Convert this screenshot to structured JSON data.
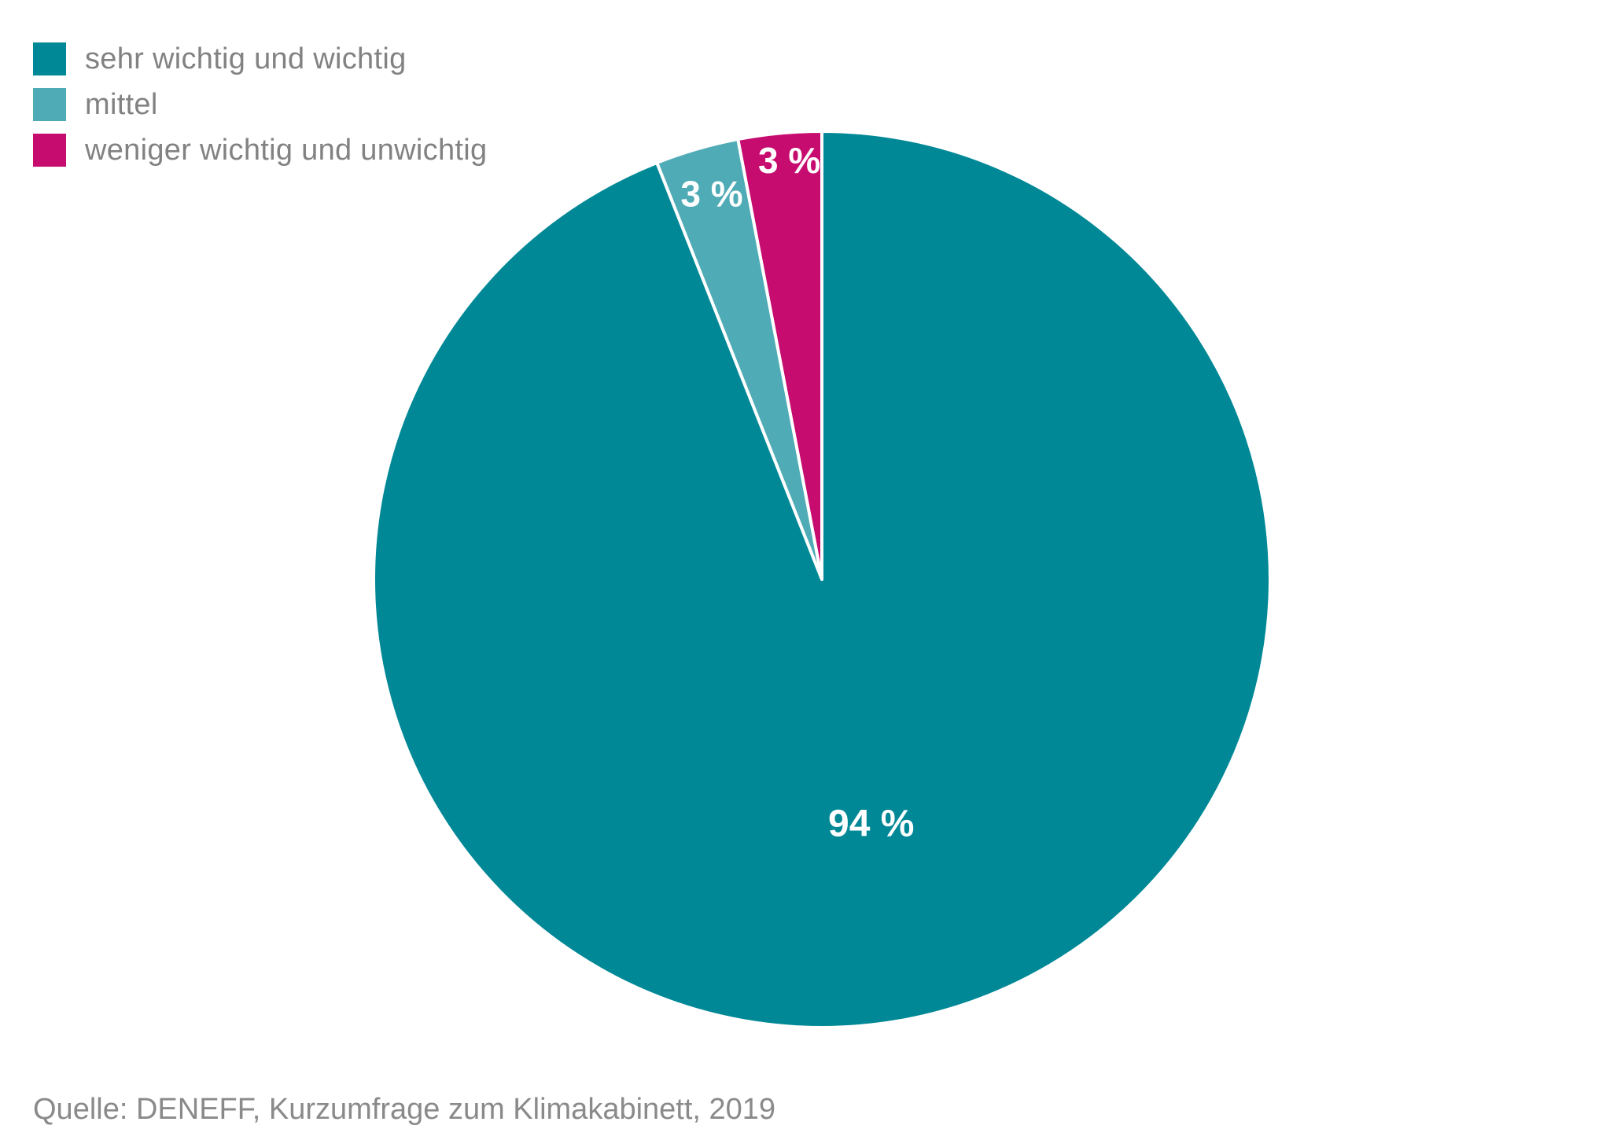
{
  "chart_data": {
    "type": "pie",
    "slices": [
      {
        "label": "sehr wichtig und wichtig",
        "value": 94,
        "display": "94 %",
        "color": "#008896"
      },
      {
        "label": "mittel",
        "value": 3,
        "display": "3 %",
        "color": "#4fabb5"
      },
      {
        "label": "weniger wichtig und unwichtig",
        "value": 3,
        "display": "3 %",
        "color": "#c70c6f"
      }
    ],
    "legend_position": "top-left"
  },
  "source": "Quelle: DENEFF, Kurzumfrage zum Klimakabinett, 2019"
}
